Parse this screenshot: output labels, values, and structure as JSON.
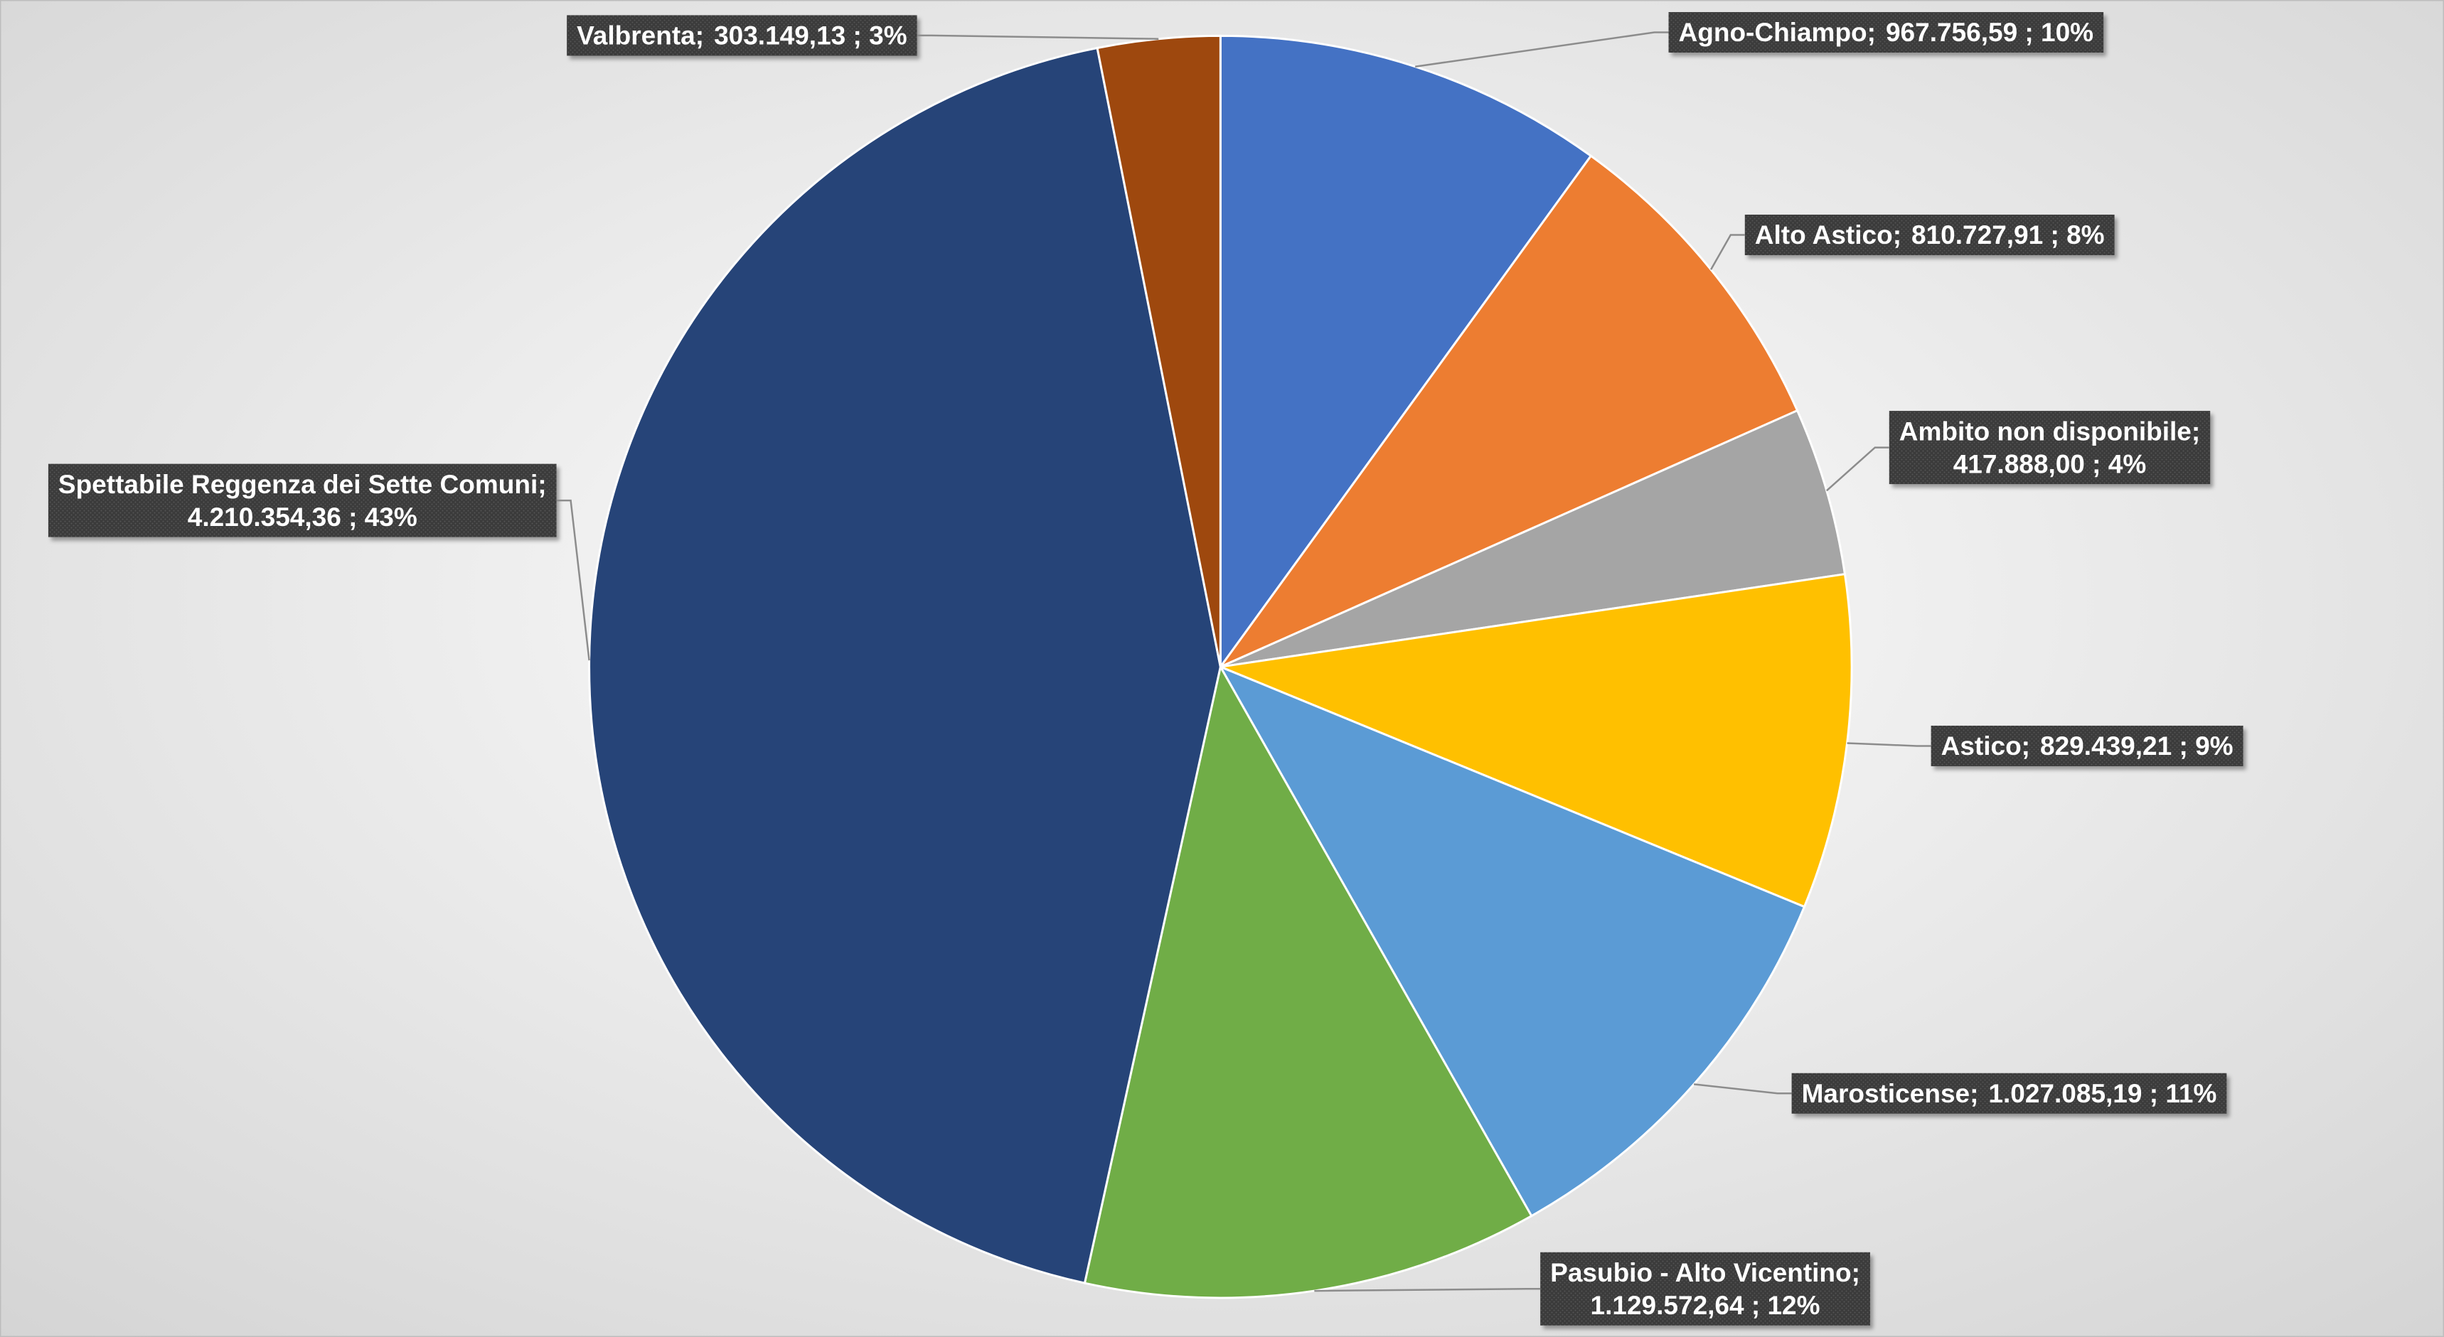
{
  "chart_data": {
    "type": "pie",
    "categories": [
      "Agno-Chiampo;",
      "Alto Astico;",
      "Ambito non disponibile;",
      "Astico;",
      "Marosticense;",
      "Pasubio - Alto Vicentino;",
      "Spettabile Reggenza dei Sette Comuni;",
      "Valbrenta;"
    ],
    "values": [
      967756.59,
      810727.91,
      417888.0,
      829439.21,
      1027085.19,
      1129572.64,
      4210354.36,
      303149.13
    ],
    "value_labels": [
      "967.756,59 ; 10%",
      "810.727,91 ; 8%",
      "417.888,00 ; 4%",
      "829.439,21 ; 9%",
      "1.027.085,19 ; 11%",
      "1.129.572,64 ; 12%",
      "4.210.354,36 ; 43%",
      "303.149,13 ; 3%"
    ],
    "colors": [
      "#4472c4",
      "#ed7d31",
      "#a5a5a5",
      "#ffc000",
      "#5b9bd5",
      "#70ad47",
      "#264478",
      "#9e480e"
    ]
  }
}
